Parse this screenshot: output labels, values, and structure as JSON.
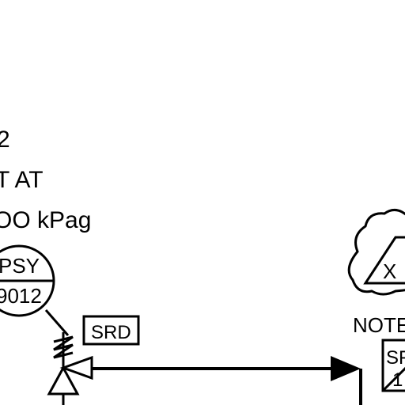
{
  "notes": {
    "line1": "2",
    "line2": "T  AT",
    "line3": "OO  kPag"
  },
  "instrument": {
    "tag_top": "PSY",
    "tag_bottom": "9012"
  },
  "srd_box": "SRD",
  "note_label": "NOTE",
  "revision_cloud": {
    "letter": "X"
  },
  "right_box": {
    "text_top": "SF",
    "text_bottom": "1"
  },
  "colors": {
    "line": "#000000",
    "background": "#ffffff"
  }
}
